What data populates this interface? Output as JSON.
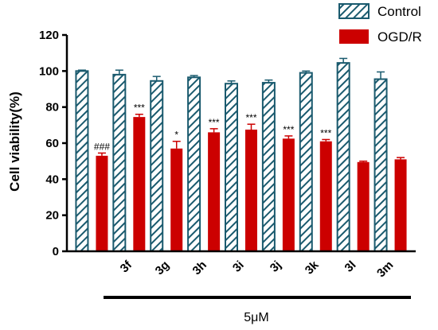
{
  "chart_data": {
    "type": "bar",
    "title": "",
    "ylabel": "Cell viability(%)",
    "xlabel": "5μM",
    "ylim": [
      0,
      120
    ],
    "yticks": [
      0,
      20,
      40,
      60,
      80,
      100,
      120
    ],
    "categories": [
      "",
      "3f",
      "3g",
      "3h",
      "3i",
      "3j",
      "3k",
      "3l",
      "3m"
    ],
    "series": [
      {
        "name": "Control",
        "color": "#1a5a6e",
        "pattern": "diagonal-hatch",
        "values": [
          100,
          98,
          94.5,
          96.5,
          93,
          93.5,
          99,
          104.5,
          95.5
        ],
        "errors": [
          0.5,
          2.5,
          2.5,
          1,
          1.5,
          1.5,
          1,
          2.5,
          4
        ]
      },
      {
        "name": "OGD/R",
        "color": "#cc0000",
        "pattern": "solid",
        "values": [
          53,
          74.5,
          57,
          66,
          67.5,
          62.5,
          61,
          49.5,
          51
        ],
        "errors": [
          1.5,
          1.5,
          4,
          2,
          3,
          1.5,
          1,
          0.5,
          1
        ]
      }
    ],
    "annotations": [
      "###",
      "***",
      "*",
      "***",
      "***",
      "***",
      "***",
      "",
      ""
    ],
    "legend": {
      "position": "top-right"
    },
    "grid": false
  }
}
